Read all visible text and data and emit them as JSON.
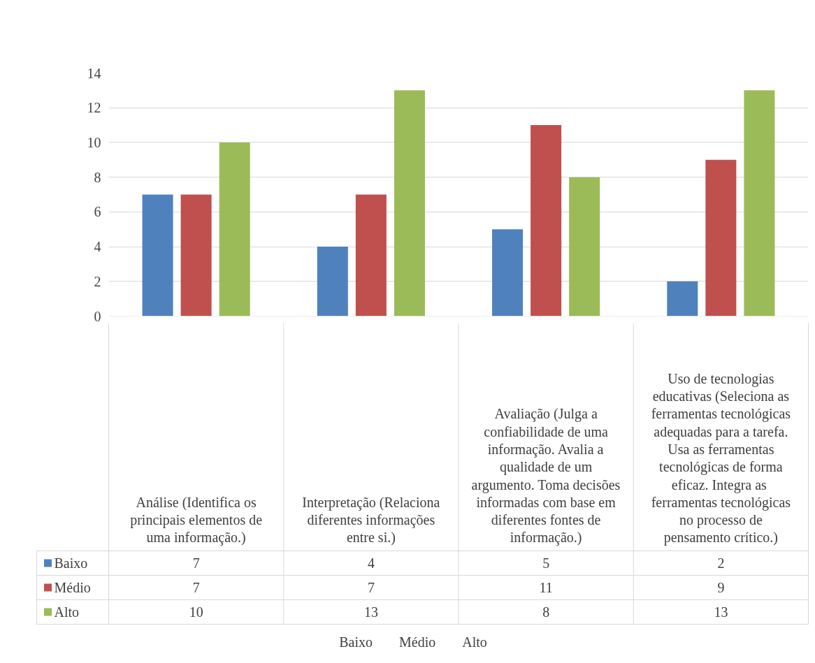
{
  "chart_data": {
    "type": "bar",
    "categories": [
      "Análise (Identifica os principais elementos de uma informação.)",
      "Interpretação (Relaciona diferentes informações entre si.)",
      "Avaliação (Julga a confiabilidade de uma informação. Avalia a qualidade de um argumento. Toma decisões informadas com base em diferentes fontes de informação.)",
      "Uso de tecnologias educativas (Seleciona as ferramentas tecnológicas adequadas para a tarefa. Usa as ferramentas tecnológicas de forma eficaz.  Integra as ferramentas tecnológicas no processo de pensamento crítico.)"
    ],
    "series": [
      {
        "name": "Baixo",
        "color": "#4f81bd",
        "values": [
          7,
          4,
          5,
          2
        ]
      },
      {
        "name": "Médio",
        "color": "#c0504d",
        "values": [
          7,
          7,
          11,
          9
        ]
      },
      {
        "name": "Alto",
        "color": "#9bbb59",
        "values": [
          10,
          13,
          8,
          13
        ]
      }
    ],
    "ylim": [
      0,
      14
    ],
    "yticks": [
      0,
      2,
      4,
      6,
      8,
      10,
      12,
      14
    ],
    "grid": "y",
    "legend": "bottom",
    "data_labels": true
  }
}
